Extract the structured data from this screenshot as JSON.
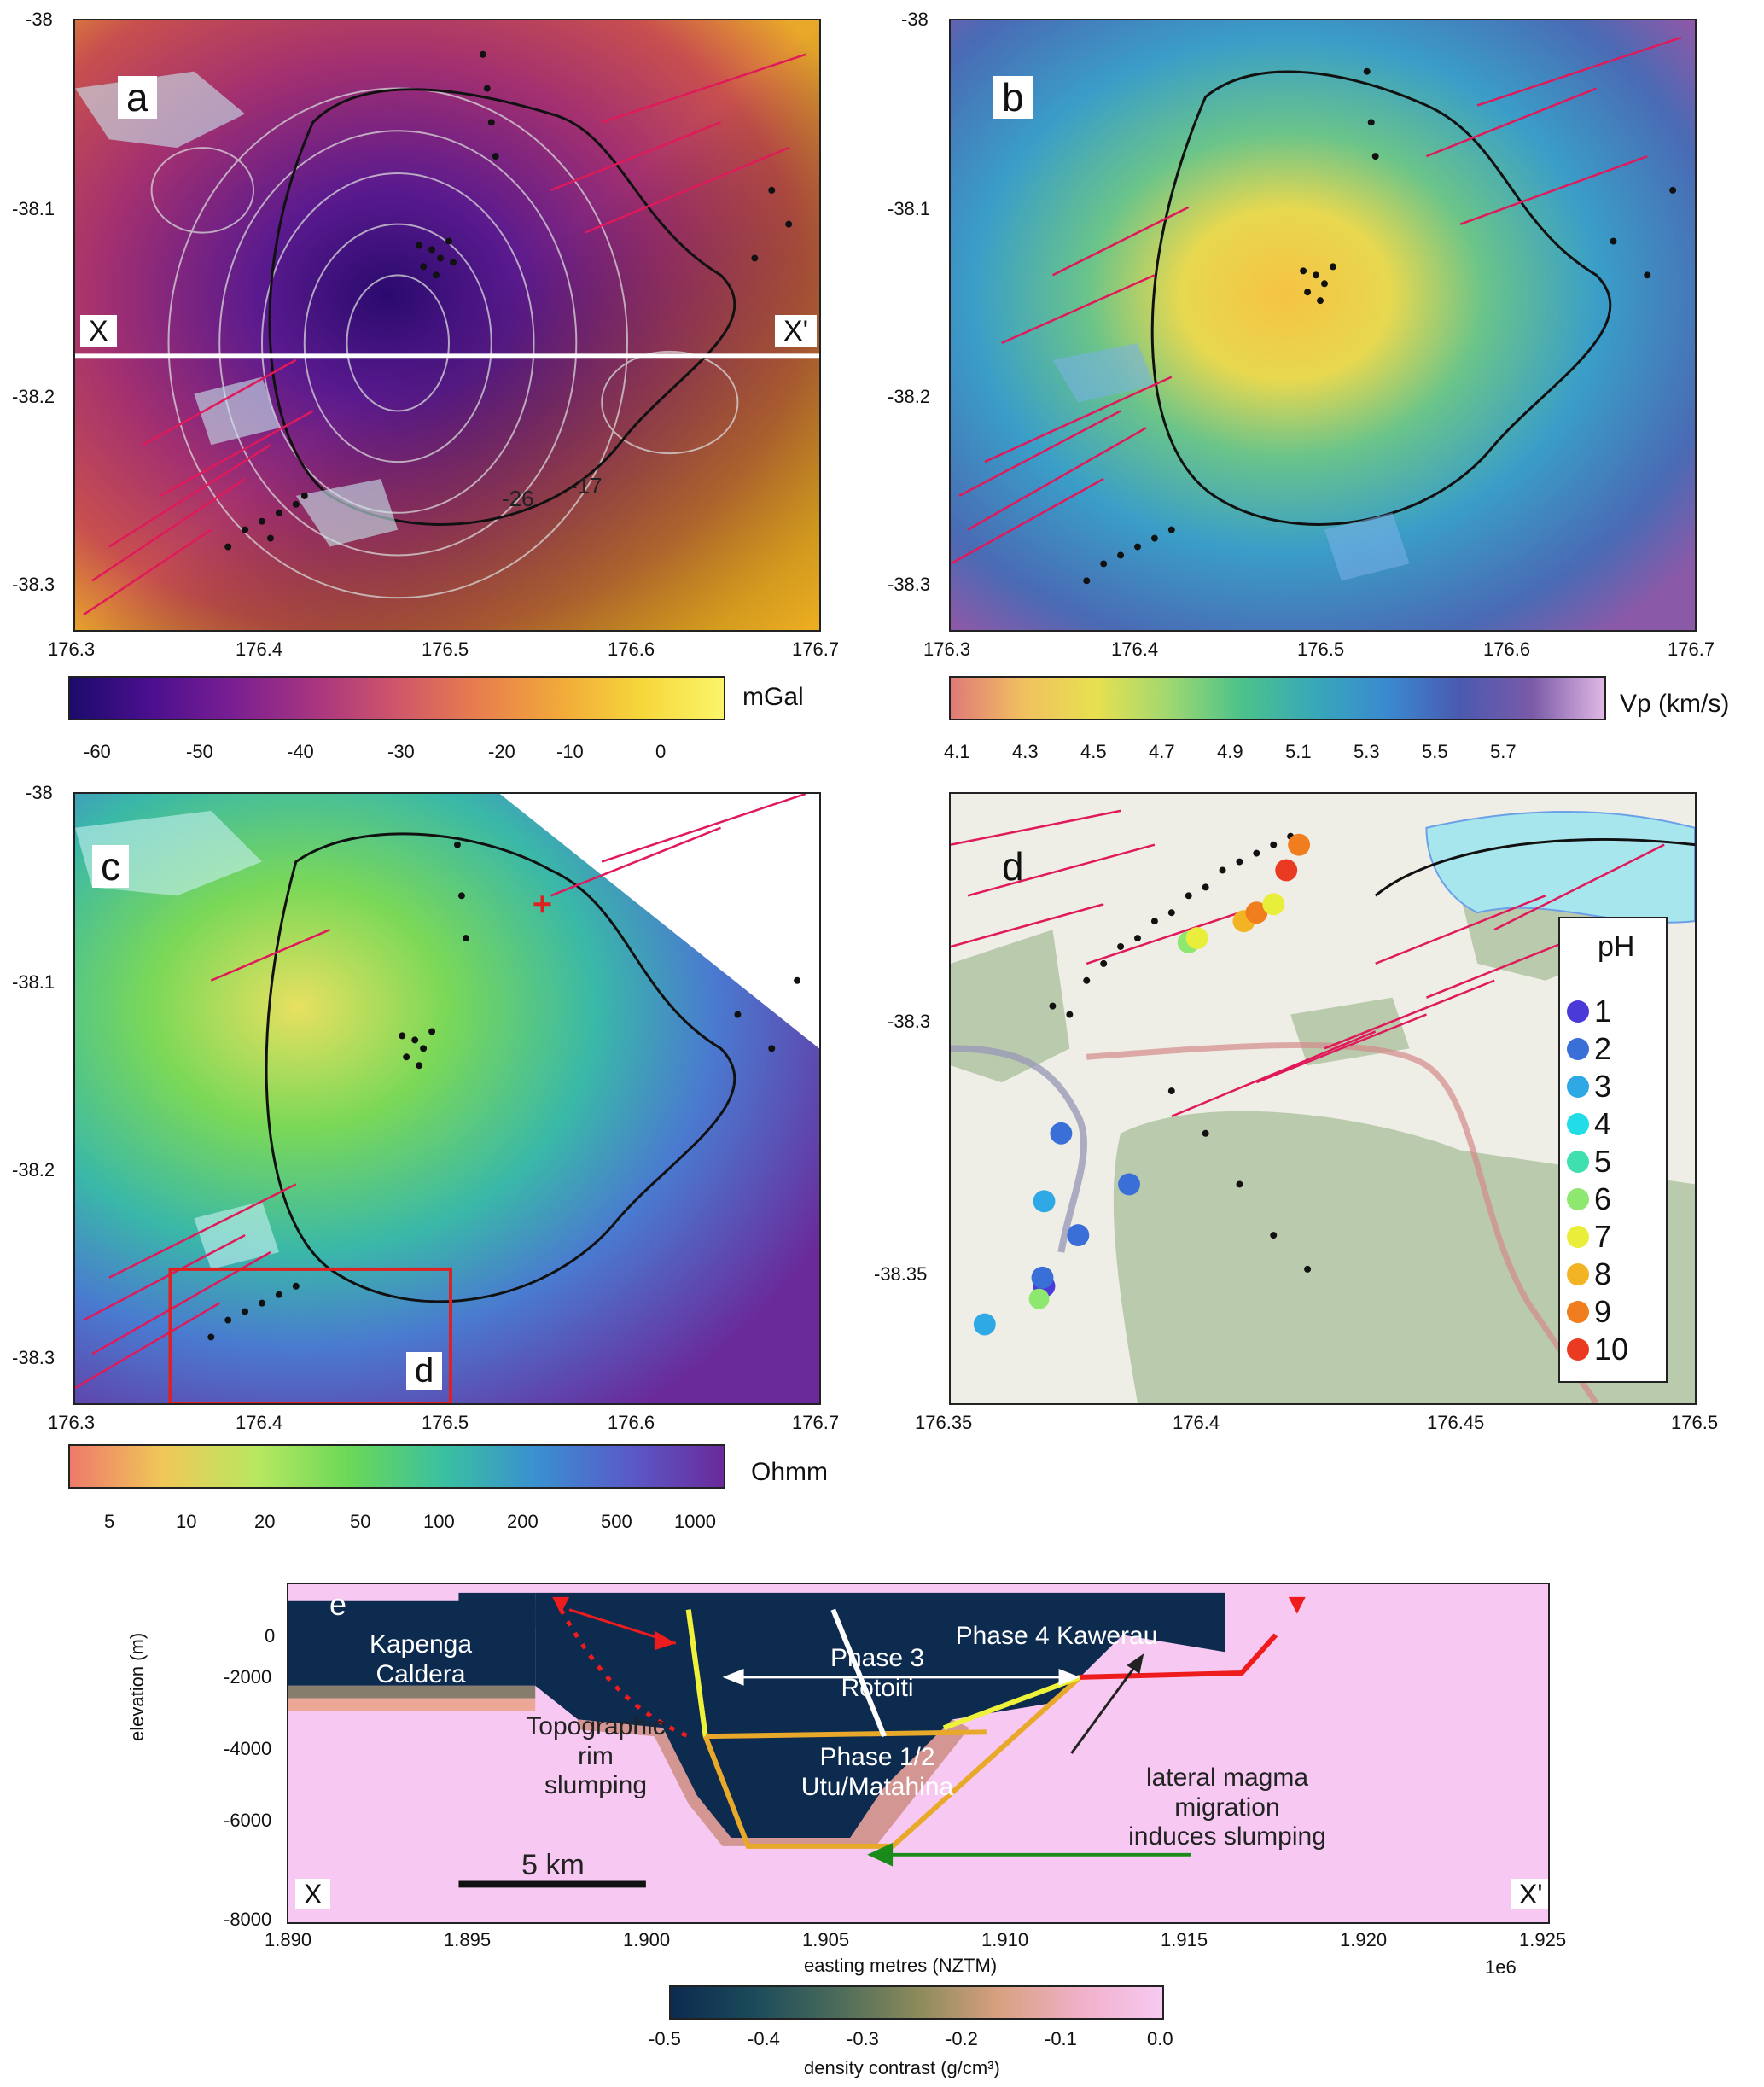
{
  "panel_a": {
    "label": "a",
    "x_ticks": [
      "176.3",
      "176.4",
      "176.5",
      "176.6",
      "176.7"
    ],
    "y_ticks": [
      "-38",
      "-38.1",
      "-38.2",
      "-38.3"
    ],
    "section_start": "X",
    "section_end": "X'",
    "contour_labels": [
      "-26",
      "-17"
    ],
    "colorbar": {
      "unit": "mGal",
      "ticks": [
        "-60",
        "-50",
        "-40",
        "-30",
        "-20",
        "-10",
        "0"
      ]
    }
  },
  "panel_b": {
    "label": "b",
    "x_ticks": [
      "176.3",
      "176.4",
      "176.5",
      "176.6",
      "176.7"
    ],
    "y_ticks": [
      "-38",
      "-38.1",
      "-38.2",
      "-38.3"
    ],
    "colorbar": {
      "unit": "Vp (km/s)",
      "ticks": [
        "4.1",
        "4.3",
        "4.5",
        "4.7",
        "4.9",
        "5.1",
        "5.3",
        "5.5",
        "5.7"
      ]
    }
  },
  "panel_c": {
    "label": "c",
    "inset_label": "d",
    "x_ticks": [
      "176.3",
      "176.4",
      "176.5",
      "176.6",
      "176.7"
    ],
    "y_ticks": [
      "-38",
      "-38.1",
      "-38.2",
      "-38.3"
    ],
    "colorbar": {
      "unit": "Ohmm",
      "ticks": [
        "5",
        "10",
        "20",
        "50",
        "100",
        "200",
        "500",
        "1000"
      ]
    }
  },
  "panel_d": {
    "label": "d",
    "x_ticks": [
      "176.35",
      "176.4",
      "176.45",
      "176.5"
    ],
    "y_ticks": [
      "-38.3",
      "-38.35"
    ],
    "legend_title": "pH",
    "legend_items": [
      {
        "label": "1",
        "color": "#4a3bd8"
      },
      {
        "label": "2",
        "color": "#3a6fd8"
      },
      {
        "label": "3",
        "color": "#2fa8e6"
      },
      {
        "label": "4",
        "color": "#22dde8"
      },
      {
        "label": "5",
        "color": "#3fe0b0"
      },
      {
        "label": "6",
        "color": "#8ee870"
      },
      {
        "label": "7",
        "color": "#e8ee3a"
      },
      {
        "label": "8",
        "color": "#f2b423"
      },
      {
        "label": "9",
        "color": "#f07d1e"
      },
      {
        "label": "10",
        "color": "#ea3a22"
      }
    ]
  },
  "panel_e": {
    "label": "e",
    "ylabel": "elevation (m)",
    "xlabel": "easting metres (NZTM)",
    "x_offset": "1e6",
    "x_ticks": [
      "1.890",
      "1.895",
      "1.900",
      "1.905",
      "1.910",
      "1.915",
      "1.920",
      "1.925"
    ],
    "y_ticks": [
      "0",
      "-2000",
      "-4000",
      "-6000",
      "-8000"
    ],
    "section_start": "X",
    "section_end": "X'",
    "scale_bar": "5 km",
    "annotations": {
      "kapenga": "Kapenga\nCaldera",
      "phase3": "Phase 3\nRotoiti",
      "phase4": "Phase 4 Kawerau",
      "phase12": "Phase 1/2\nUtu/Matahina",
      "slump": "Topographic\nrim\nslumping",
      "lateral": "lateral magma\nmigration\ninduces slumping"
    },
    "colorbar": {
      "label": "density contrast (g/cm³)",
      "ticks": [
        "-0.5",
        "-0.4",
        "-0.3",
        "-0.2",
        "-0.1",
        "0.0"
      ]
    }
  },
  "colors": {
    "fault": "#e0195a",
    "caldera_outline": "#111111",
    "lake": "#c9f0f4",
    "density_low": "#0d2a4f",
    "density_high": "#f7c9f2"
  }
}
